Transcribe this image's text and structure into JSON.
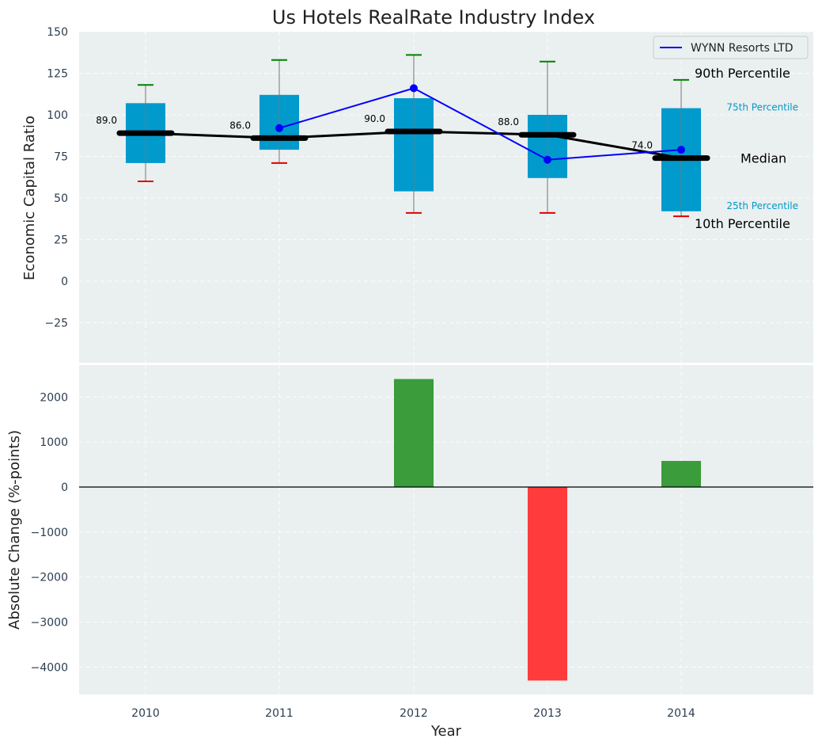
{
  "chart_data": [
    {
      "type": "box",
      "title": "Us Hotels RealRate Industry Index",
      "ylabel": "Economic Capital Ratio",
      "ylim": [
        -50,
        150
      ],
      "yticks": [
        150,
        125,
        100,
        75,
        50,
        25,
        0,
        -25
      ],
      "ytick_labels": [
        "150",
        "125",
        "100",
        "75",
        "50",
        "25",
        "0",
        "−25"
      ],
      "categories": [
        "2010",
        "2011",
        "2012",
        "2013",
        "2014"
      ],
      "p10": [
        60,
        71,
        41,
        41,
        39
      ],
      "p25": [
        71,
        79,
        54,
        62,
        42
      ],
      "median": [
        89,
        86,
        90,
        88,
        74
      ],
      "p75": [
        107,
        112,
        110,
        100,
        104
      ],
      "p90": [
        118,
        133,
        136,
        132,
        121
      ],
      "median_labels": [
        "89.0",
        "86.0",
        "90.0",
        "88.0",
        "74.0"
      ],
      "series": [
        {
          "name": "WYNN Resorts LTD",
          "values": [
            null,
            92,
            116,
            73,
            79
          ]
        }
      ],
      "legend": {
        "entries": [
          "WYNN Resorts LTD"
        ],
        "placement": "upper-right"
      },
      "annotations": {
        "p90": "90th Percentile",
        "p75": "75th Percentile",
        "median": "Median",
        "p25": "25th Percentile",
        "p10": "10th Percentile"
      },
      "grid": true
    },
    {
      "type": "bar",
      "ylabel": "Absolute Change (%-points)",
      "xlabel": "Year",
      "ylim": [
        -4600,
        2800
      ],
      "yticks": [
        2000,
        1000,
        0,
        -1000,
        -2000,
        -3000,
        -4000
      ],
      "ytick_labels": [
        "2000",
        "1000",
        "0",
        "−1000",
        "−2000",
        "−3000",
        "−4000"
      ],
      "categories": [
        "2010",
        "2011",
        "2012",
        "2013",
        "2014"
      ],
      "values": [
        null,
        null,
        2400,
        -4300,
        580
      ],
      "grid": true
    }
  ],
  "colors": {
    "panel_bg": "#eaeff0",
    "box": "#009acd",
    "series_line": "#0000ff",
    "median_bar": "#000000",
    "p90_cap": "#008000",
    "p10_cap": "#e00000",
    "p75_label": "#0099c6",
    "bar_positive": "#3a9c3a",
    "bar_negative": "#ff3b3b",
    "tick_text": "#2c3e50"
  }
}
